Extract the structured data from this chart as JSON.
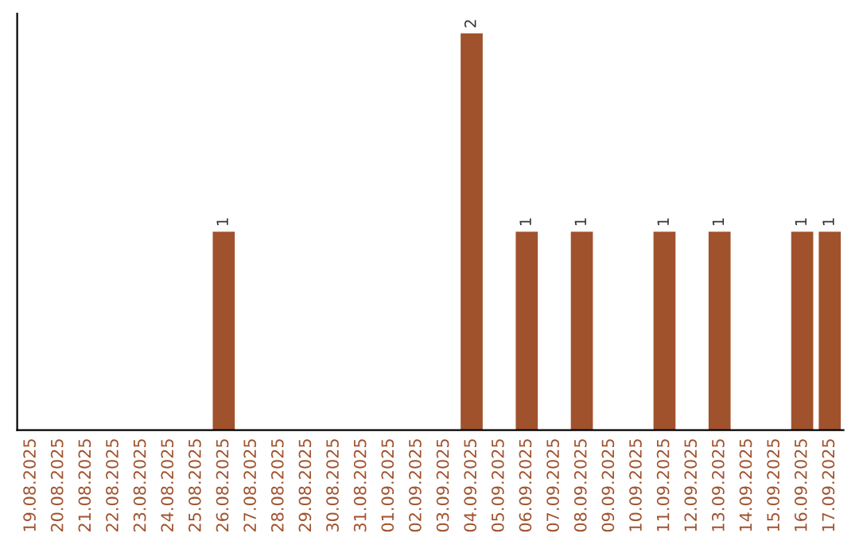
{
  "chart_data": {
    "type": "bar",
    "categories": [
      "19.08.2025",
      "20.08.2025",
      "21.08.2025",
      "22.08.2025",
      "23.08.2025",
      "24.08.2025",
      "25.08.2025",
      "26.08.2025",
      "27.08.2025",
      "28.08.2025",
      "29.08.2025",
      "30.08.2025",
      "31.08.2025",
      "01.09.2025",
      "02.09.2025",
      "03.09.2025",
      "04.09.2025",
      "05.09.2025",
      "06.09.2025",
      "07.09.2025",
      "08.09.2025",
      "09.09.2025",
      "10.09.2025",
      "11.09.2025",
      "12.09.2025",
      "13.09.2025",
      "14.09.2025",
      "15.09.2025",
      "16.09.2025",
      "17.09.2025"
    ],
    "values": [
      0,
      0,
      0,
      0,
      0,
      0,
      0,
      1,
      0,
      0,
      0,
      0,
      0,
      0,
      0,
      0,
      2,
      0,
      1,
      0,
      1,
      0,
      0,
      1,
      0,
      1,
      0,
      0,
      1,
      1
    ],
    "color": "#a0522d",
    "ylim": [
      0,
      2.1
    ],
    "tick_labels": "x",
    "value_labels": [
      null,
      null,
      null,
      null,
      null,
      null,
      null,
      "1",
      null,
      null,
      null,
      null,
      null,
      null,
      null,
      null,
      "2",
      null,
      "1",
      null,
      "1",
      null,
      null,
      "1",
      null,
      "1",
      null,
      null,
      "1",
      "1"
    ],
    "grid": false
  }
}
